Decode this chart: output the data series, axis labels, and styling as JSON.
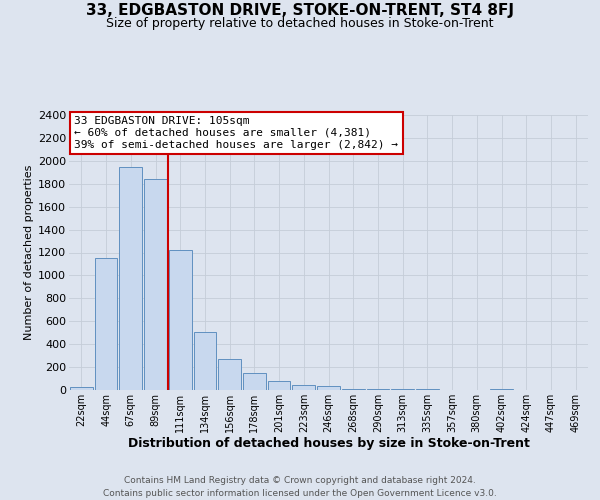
{
  "title_line1": "33, EDGBASTON DRIVE, STOKE-ON-TRENT, ST4 8FJ",
  "title_line2": "Size of property relative to detached houses in Stoke-on-Trent",
  "xlabel": "Distribution of detached houses by size in Stoke-on-Trent",
  "ylabel": "Number of detached properties",
  "bar_labels": [
    "22sqm",
    "44sqm",
    "67sqm",
    "89sqm",
    "111sqm",
    "134sqm",
    "156sqm",
    "178sqm",
    "201sqm",
    "223sqm",
    "246sqm",
    "268sqm",
    "290sqm",
    "313sqm",
    "335sqm",
    "357sqm",
    "380sqm",
    "402sqm",
    "424sqm",
    "447sqm",
    "469sqm"
  ],
  "bar_values": [
    30,
    1150,
    1950,
    1840,
    1220,
    510,
    270,
    150,
    80,
    45,
    35,
    10,
    5,
    5,
    5,
    3,
    2,
    10,
    2,
    2,
    2
  ],
  "bar_color": "#c8d8ee",
  "bar_edge_color": "#6090c0",
  "ylim": [
    0,
    2400
  ],
  "yticks": [
    0,
    200,
    400,
    600,
    800,
    1000,
    1200,
    1400,
    1600,
    1800,
    2000,
    2200,
    2400
  ],
  "red_line_x": 3.5,
  "red_line_color": "#cc0000",
  "annotation_title": "33 EDGBASTON DRIVE: 105sqm",
  "annotation_line1": "← 60% of detached houses are smaller (4,381)",
  "annotation_line2": "39% of semi-detached houses are larger (2,842) →",
  "annotation_box_color": "#ffffff",
  "annotation_box_edge": "#cc0000",
  "grid_color": "#c5cdd8",
  "bg_color": "#dde4ef",
  "title1_fontsize": 11,
  "title2_fontsize": 9,
  "ylabel_fontsize": 8,
  "xlabel_fontsize": 9,
  "ytick_fontsize": 8,
  "xtick_fontsize": 7,
  "ann_fontsize": 8,
  "footer_fontsize": 6.5,
  "footer_line1": "Contains HM Land Registry data © Crown copyright and database right 2024.",
  "footer_line2": "Contains public sector information licensed under the Open Government Licence v3.0."
}
